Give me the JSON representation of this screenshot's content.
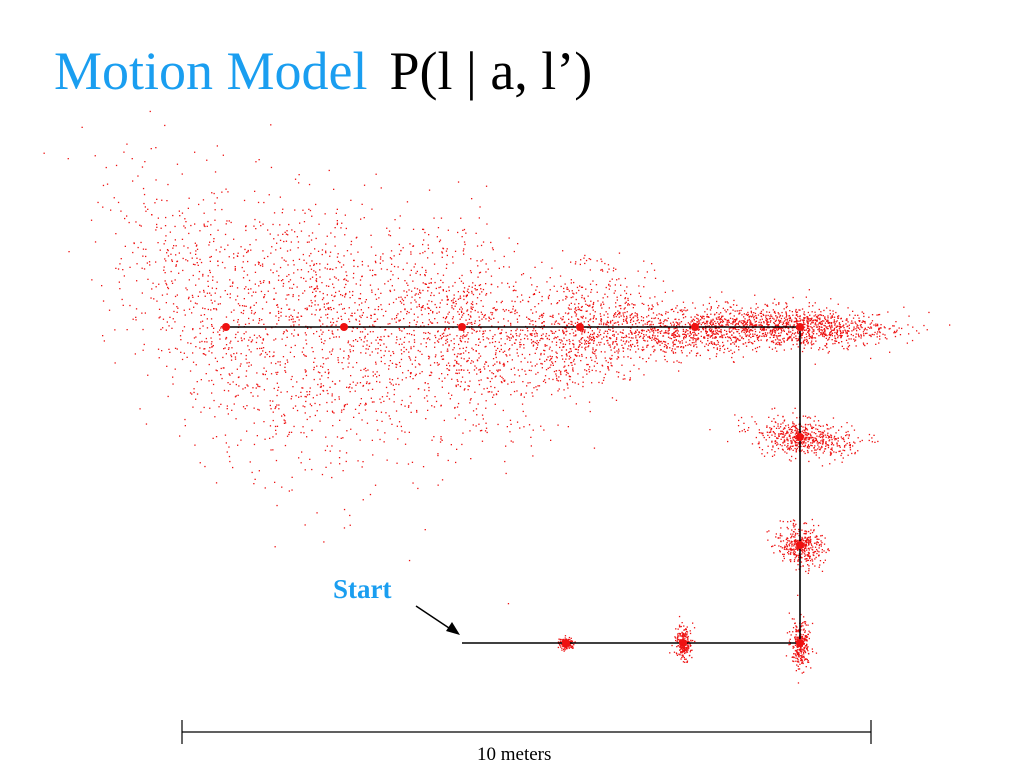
{
  "slide": {
    "title_main": "Motion Model",
    "title_formula": "P(l | a, l’)"
  },
  "diagram": {
    "start_label": "Start",
    "scale_label": "10 meters",
    "colors": {
      "samples": "#ee1111",
      "path": "#000000",
      "accent": "#1a9ef0"
    }
  }
}
